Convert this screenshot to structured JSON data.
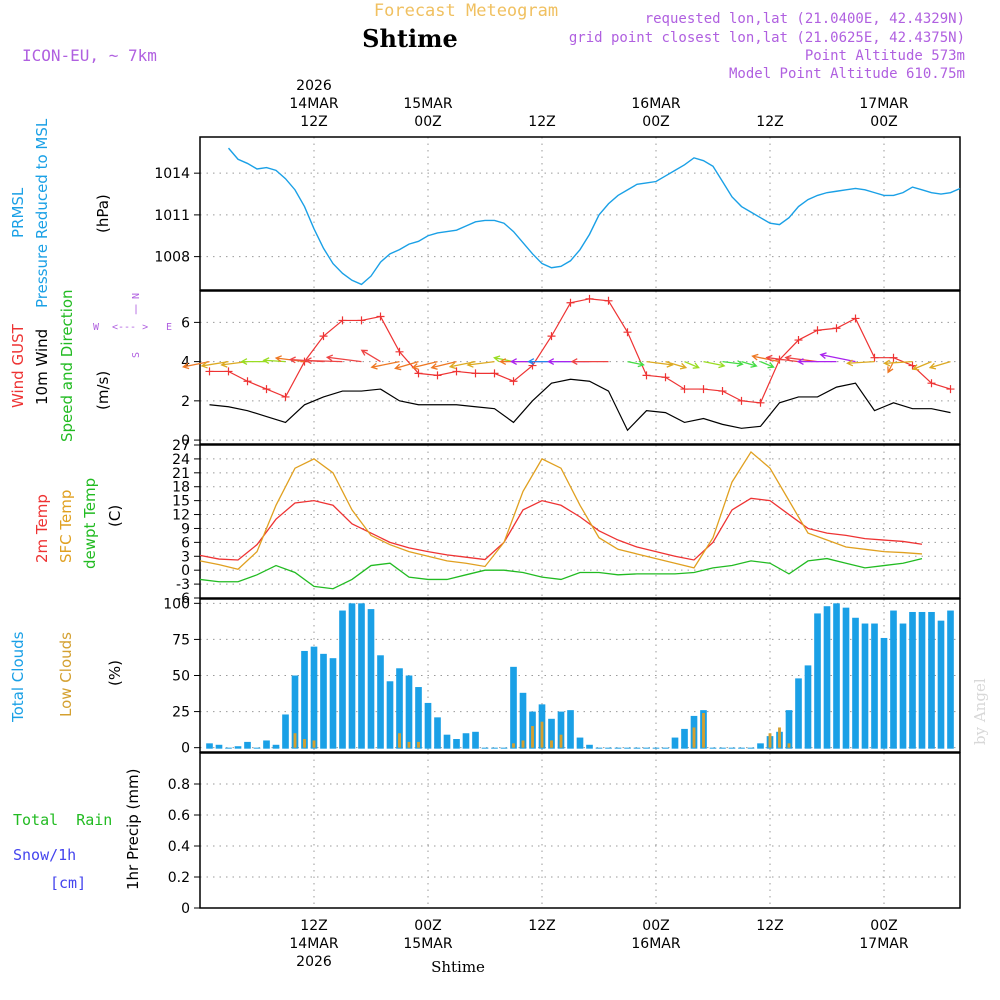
{
  "header": {
    "title": "Forecast Meteogram",
    "location": "Shtime",
    "model": "ICON-EU, ~ 7km",
    "requested": "requested lon,lat (21.0400E, 42.4329N)",
    "grid_point": "grid point closest lon,lat (21.0625E, 42.4375N)",
    "point_altitude": "Point Altitude 573m",
    "model_altitude": "Model Point Altitude 610.75m",
    "credit": "by Angel",
    "footer": "Shtime"
  },
  "time_axis": {
    "top": [
      {
        "lines": [
          "2026",
          "14MAR",
          "12Z"
        ],
        "h": 12
      },
      {
        "lines": [
          "15MAR",
          "00Z"
        ],
        "h": 24
      },
      {
        "lines": [
          "12Z"
        ],
        "h": 36
      },
      {
        "lines": [
          "16MAR",
          "00Z"
        ],
        "h": 48
      },
      {
        "lines": [
          "12Z"
        ],
        "h": 60
      },
      {
        "lines": [
          "17MAR",
          "00Z"
        ],
        "h": 72
      }
    ],
    "bottom": [
      {
        "lines": [
          "12Z",
          "14MAR",
          "2026"
        ],
        "h": 12
      },
      {
        "lines": [
          "00Z",
          "15MAR"
        ],
        "h": 24
      },
      {
        "lines": [
          "12Z"
        ],
        "h": 36
      },
      {
        "lines": [
          "00Z",
          "16MAR"
        ],
        "h": 48
      },
      {
        "lines": [
          "12Z"
        ],
        "h": 60
      },
      {
        "lines": [
          "00Z",
          "17MAR"
        ],
        "h": 72
      }
    ]
  },
  "colors": {
    "pressure": "#1aa0e6",
    "gust": "#ee3333",
    "wind": "#000000",
    "direction": "#22bb22",
    "temp": "#ee3333",
    "sfc_temp": "#e0a020",
    "dewpt": "#22bb22",
    "total_clouds": "#1aa0e6",
    "low_clouds": "#d4a030",
    "rain": "#22bb22",
    "snow": "#4444ee",
    "purple": "#b060e0",
    "header_orange": "#f0c060"
  },
  "panels": {
    "pressure": {
      "labels": [
        "PRMSL",
        "Pressure Reduced to MSL"
      ],
      "unit": "(hPa)"
    },
    "wind": {
      "labels": [
        "Wind GUST",
        "10m Wind",
        "Speed and Direction"
      ],
      "unit": "(m/s)",
      "compass": {
        "n": "N",
        "s": "S",
        "w": "W",
        "e": "E",
        "ns_arrow": "|",
        "we_arrow": "<--- >"
      }
    },
    "temp": {
      "labels": [
        "2m Temp",
        "SFC Temp",
        "dewpt Temp"
      ],
      "unit": "(C)"
    },
    "clouds": {
      "labels": [
        "Total Clouds",
        "Low Clouds"
      ],
      "unit": "(%)"
    },
    "precip": {
      "labels": [
        "Total  Rain",
        "Snow/1h",
        "[cm]"
      ],
      "unit": "1hr Precip (mm)"
    }
  },
  "chart_data": [
    {
      "type": "line",
      "title": "PRMSL Pressure Reduced to MSL",
      "ylabel": "hPa",
      "x_unit": "hours from 14MAR 00Z",
      "ylim": [
        1005.6,
        1016.6
      ],
      "yticks": [
        1008,
        1011,
        1014
      ],
      "x": [
        3,
        4,
        5,
        6,
        7,
        8,
        9,
        10,
        11,
        12,
        13,
        14,
        15,
        16,
        17,
        18,
        19,
        20,
        21,
        22,
        23,
        24,
        25,
        26,
        27,
        28,
        29,
        30,
        31,
        32,
        33,
        34,
        35,
        36,
        37,
        38,
        39,
        40,
        41,
        42,
        43,
        44,
        45,
        46,
        47,
        48,
        49,
        50,
        51,
        52,
        53,
        54,
        55,
        56,
        57,
        58,
        59,
        60,
        61,
        62,
        63,
        64,
        65,
        66,
        67,
        68,
        69,
        70,
        71,
        72,
        73,
        74,
        75,
        76,
        77,
        78,
        79,
        80
      ],
      "series": [
        {
          "name": "PRMSL",
          "values": [
            1015.8,
            1015.0,
            1014.7,
            1014.3,
            1014.4,
            1014.2,
            1013.6,
            1012.8,
            1011.6,
            1010.0,
            1008.6,
            1007.5,
            1006.8,
            1006.3,
            1006.0,
            1006.6,
            1007.6,
            1008.2,
            1008.5,
            1008.9,
            1009.1,
            1009.5,
            1009.7,
            1009.8,
            1009.9,
            1010.2,
            1010.5,
            1010.6,
            1010.6,
            1010.4,
            1009.8,
            1009.0,
            1008.2,
            1007.5,
            1007.2,
            1007.3,
            1007.7,
            1008.5,
            1009.6,
            1011.0,
            1011.8,
            1012.4,
            1012.8,
            1013.2,
            1013.3,
            1013.4,
            1013.8,
            1014.2,
            1014.6,
            1015.1,
            1014.9,
            1014.5,
            1013.4,
            1012.3,
            1011.6,
            1011.2,
            1010.8,
            1010.4,
            1010.3,
            1010.8,
            1011.6,
            1012.1,
            1012.4,
            1012.6,
            1012.7,
            1012.8,
            1012.9,
            1012.8,
            1012.6,
            1012.4,
            1012.4,
            1012.6,
            1013.0,
            1012.8,
            1012.6,
            1012.5,
            1012.6,
            1012.9
          ]
        }
      ]
    },
    {
      "type": "line",
      "title": "Wind GUST / 10m Wind Speed and Direction",
      "ylabel": "m/s",
      "x_unit": "hours from 14MAR 00Z",
      "ylim": [
        -0.2,
        7.6
      ],
      "yticks": [
        0,
        2,
        4,
        6
      ],
      "x": [
        1,
        3,
        5,
        7,
        9,
        11,
        13,
        15,
        17,
        19,
        21,
        23,
        25,
        27,
        29,
        31,
        33,
        35,
        37,
        39,
        41,
        43,
        45,
        47,
        49,
        51,
        53,
        55,
        57,
        59,
        61,
        63,
        65,
        67,
        69,
        71,
        73,
        75,
        77,
        79
      ],
      "series": [
        {
          "name": "Wind GUST",
          "values": [
            3.5,
            3.5,
            3.0,
            2.6,
            2.2,
            4.0,
            5.3,
            6.1,
            6.1,
            6.3,
            4.5,
            3.4,
            3.3,
            3.5,
            3.4,
            3.4,
            3.0,
            3.8,
            5.3,
            7.0,
            7.2,
            7.1,
            5.5,
            3.3,
            3.2,
            2.6,
            2.6,
            2.5,
            2.0,
            1.9,
            4.1,
            5.1,
            5.6,
            5.7,
            6.2,
            4.2,
            4.2,
            3.8,
            2.9,
            2.6
          ]
        },
        {
          "name": "10m Wind",
          "values": [
            1.8,
            1.7,
            1.5,
            1.2,
            0.9,
            1.8,
            2.2,
            2.5,
            2.5,
            2.6,
            2.0,
            1.8,
            1.8,
            1.8,
            1.7,
            1.6,
            0.9,
            2.0,
            2.9,
            3.1,
            3.0,
            2.5,
            0.5,
            1.5,
            1.4,
            0.9,
            1.1,
            0.8,
            0.6,
            0.7,
            1.9,
            2.2,
            2.2,
            2.7,
            2.9,
            1.5,
            1.9,
            1.6,
            1.6,
            1.4
          ]
        }
      ],
      "direction_deg": [
        240,
        245,
        250,
        270,
        280,
        290,
        280,
        275,
        290,
        330,
        240,
        230,
        235,
        235,
        240,
        250,
        300,
        270,
        270,
        270,
        270,
        270,
        120,
        110,
        130,
        140,
        120,
        110,
        130,
        140,
        300,
        290,
        290,
        270,
        300,
        260,
        190,
        260,
        220,
        230
      ]
    },
    {
      "type": "line",
      "title": "2m Temp / SFC Temp / dewpt Temp",
      "ylabel": "C",
      "x_unit": "hours from 14MAR 00Z",
      "ylim": [
        -6,
        27
      ],
      "yticks": [
        -6,
        -3,
        0,
        3,
        6,
        9,
        12,
        15,
        18,
        21,
        24,
        27
      ],
      "x": [
        0,
        2,
        4,
        6,
        8,
        10,
        12,
        14,
        16,
        18,
        20,
        22,
        24,
        26,
        28,
        30,
        32,
        34,
        36,
        38,
        40,
        42,
        44,
        46,
        48,
        50,
        52,
        54,
        56,
        58,
        60,
        62,
        64,
        66,
        68,
        70,
        72,
        74,
        76
      ],
      "series": [
        {
          "name": "2m Temp",
          "values": [
            3.2,
            2.4,
            2.2,
            5.5,
            11,
            14.5,
            15,
            14,
            10,
            8,
            6,
            4.8,
            4,
            3.3,
            2.8,
            2.3,
            6,
            13,
            15,
            14,
            11.5,
            8.5,
            6.5,
            5,
            4,
            3,
            2.2,
            6,
            13,
            15.5,
            15,
            12,
            9,
            8,
            7.5,
            6.8,
            6.5,
            6.2,
            5.6
          ]
        },
        {
          "name": "SFC Temp",
          "values": [
            2,
            1.2,
            0.2,
            4,
            14,
            22,
            24,
            21,
            13,
            7.5,
            5.5,
            4,
            3,
            2,
            1.5,
            0.8,
            6,
            17,
            24,
            22,
            14,
            7,
            4.5,
            3.5,
            2.5,
            1.5,
            0.5,
            7,
            19,
            25.5,
            22,
            15,
            8,
            6.5,
            5,
            4.5,
            4,
            3.8,
            3.5
          ]
        },
        {
          "name": "dewpt Temp",
          "values": [
            -2,
            -2.5,
            -2.5,
            -1,
            1,
            -0.5,
            -3.5,
            -4,
            -2,
            1,
            1.5,
            -1.5,
            -2,
            -2,
            -1,
            0,
            0,
            -0.5,
            -1.5,
            -2,
            -0.5,
            -0.5,
            -1,
            -0.8,
            -0.8,
            -0.8,
            -0.5,
            0.5,
            1,
            2,
            1.5,
            -0.8,
            2,
            2.5,
            1.5,
            0.5,
            1,
            1.5,
            2.5
          ]
        }
      ]
    },
    {
      "type": "bar",
      "title": "Total Clouds / Low Clouds",
      "ylabel": "%",
      "x_unit": "hours from 14MAR 00Z",
      "ylim": [
        -3,
        103
      ],
      "yticks": [
        0,
        25,
        50,
        75,
        100
      ],
      "x": [
        1,
        2,
        3,
        4,
        5,
        6,
        7,
        8,
        9,
        10,
        11,
        12,
        13,
        14,
        15,
        16,
        17,
        18,
        19,
        20,
        21,
        22,
        23,
        24,
        25,
        26,
        27,
        28,
        29,
        30,
        31,
        32,
        33,
        34,
        35,
        36,
        37,
        38,
        39,
        40,
        41,
        42,
        43,
        44,
        45,
        46,
        47,
        48,
        49,
        50,
        51,
        52,
        53,
        54,
        55,
        56,
        57,
        58,
        59,
        60,
        61,
        62,
        63,
        64,
        65,
        66,
        67,
        68,
        69,
        70,
        71,
        72,
        73,
        74,
        75,
        76,
        77,
        78,
        79
      ],
      "series": [
        {
          "name": "Total Clouds",
          "values": [
            3,
            2,
            0,
            1,
            4,
            0,
            5,
            2,
            23,
            50,
            67,
            70,
            65,
            62,
            95,
            100,
            100,
            96,
            64,
            46,
            55,
            50,
            42,
            31,
            21,
            9,
            6,
            10,
            11,
            0,
            0,
            0,
            56,
            38,
            25,
            30,
            20,
            25,
            26,
            7,
            2,
            0,
            0,
            0,
            0,
            0,
            0,
            0,
            0,
            7,
            13,
            22,
            26,
            0,
            0,
            0,
            0,
            0,
            3,
            8,
            11,
            26,
            48,
            57,
            93,
            98,
            100,
            97,
            90,
            86,
            86,
            76,
            95,
            86,
            94,
            94,
            94,
            88,
            95
          ]
        },
        {
          "name": "Low Clouds",
          "values": [
            0,
            0,
            0,
            0,
            0,
            0,
            0,
            0,
            0,
            10,
            6,
            5,
            0,
            0,
            0,
            0,
            0,
            0,
            0,
            0,
            10,
            4,
            4,
            0,
            0,
            0,
            0,
            0,
            0,
            0,
            0,
            0,
            3,
            5,
            15,
            18,
            5,
            9,
            0,
            0,
            0,
            0,
            0,
            0,
            0,
            0,
            0,
            0,
            0,
            0,
            0,
            14,
            24,
            0,
            0,
            0,
            0,
            0,
            0,
            10,
            14,
            3,
            0,
            0,
            0,
            0,
            0,
            0,
            0,
            0,
            0,
            0,
            0,
            0,
            0,
            0,
            0,
            0,
            0
          ]
        }
      ]
    },
    {
      "type": "bar",
      "title": "1hr Precip",
      "ylabel": "mm",
      "x_unit": "hours from 14MAR 00Z",
      "ylim": [
        0,
        1.0
      ],
      "yticks": [
        0,
        0.2,
        0.4,
        0.6,
        0.8
      ],
      "x": [],
      "series": [
        {
          "name": "Total Rain",
          "values": []
        },
        {
          "name": "Snow/1h",
          "values": []
        }
      ]
    }
  ]
}
